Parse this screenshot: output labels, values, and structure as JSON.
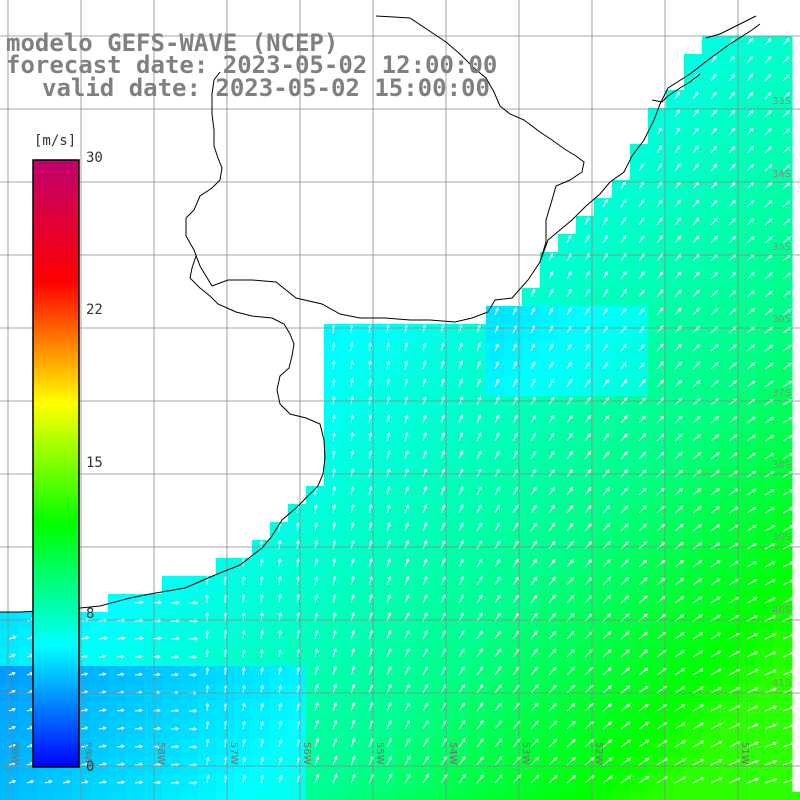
{
  "title": {
    "line1": "modelo GEFS-WAVE (NCEP)",
    "line2": "forecast date: 2023-05-02 12:00:00",
    "line3": "valid date: 2023-05-02 15:00:00"
  },
  "colorbar": {
    "unit": "[m/s]",
    "ticks": [
      {
        "label": "30",
        "value": 30
      },
      {
        "label": "22",
        "value": 22
      },
      {
        "label": "15",
        "value": 15
      },
      {
        "label": "8",
        "value": 8
      },
      {
        "label": "0",
        "value": 0
      }
    ],
    "stops": [
      "#0000ff",
      "#00ffff",
      "#00ff00",
      "#ffff00",
      "#ff0000",
      "#c0006e"
    ]
  },
  "map": {
    "longitude_labels": [
      "60W",
      "59W",
      "58W",
      "57W",
      "56W",
      "55W",
      "54W",
      "53W",
      "52W",
      "51W"
    ],
    "latitude_labels": [
      "33S",
      "34S",
      "35S",
      "36S",
      "37S",
      "38S",
      "39S",
      "40S",
      "41S"
    ],
    "land_color": "#ffffff",
    "coast_color": "#000000",
    "grid_color": "#808080"
  }
}
